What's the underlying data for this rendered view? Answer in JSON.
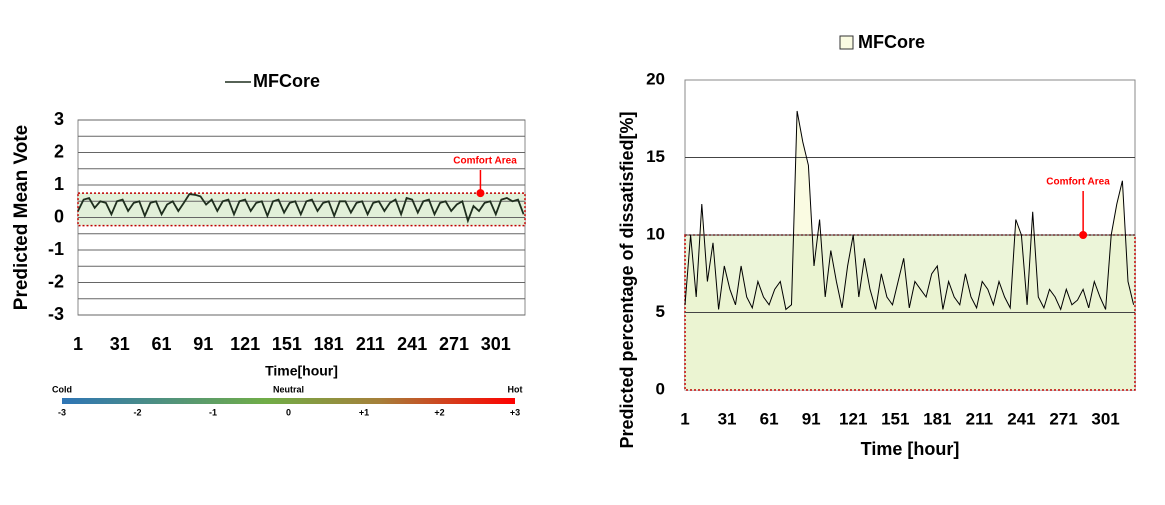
{
  "chart_data": [
    {
      "type": "line",
      "ylabel": "Predicted Mean Vote",
      "xlabel": "Time[hour]",
      "series": [
        {
          "name": "MFCore",
          "color": "#1e2e1e",
          "values": [
            0.2,
            0.55,
            0.6,
            0.3,
            0.5,
            0.45,
            0.1,
            0.5,
            0.55,
            0.2,
            0.45,
            0.5,
            0.05,
            0.45,
            0.5,
            0.1,
            0.4,
            0.5,
            0.2,
            0.45,
            0.72,
            0.7,
            0.65,
            0.4,
            0.55,
            0.2,
            0.5,
            0.55,
            0.1,
            0.5,
            0.55,
            0.2,
            0.45,
            0.5,
            0.05,
            0.5,
            0.55,
            0.15,
            0.45,
            0.5,
            0.1,
            0.5,
            0.55,
            0.2,
            0.45,
            0.5,
            0.05,
            0.5,
            0.5,
            0.15,
            0.45,
            0.5,
            0.1,
            0.45,
            0.5,
            0.2,
            0.45,
            0.55,
            0.1,
            0.6,
            0.55,
            0.15,
            0.5,
            0.55,
            0.1,
            0.45,
            0.5,
            0.2,
            0.4,
            0.5,
            -0.1,
            0.35,
            0.2,
            0.45,
            0.5,
            0.1,
            0.55,
            0.6,
            0.5,
            0.55,
            0.1
          ]
        }
      ],
      "x": [
        1,
        5,
        9,
        13,
        17,
        21,
        25,
        29,
        33,
        37,
        41,
        45,
        49,
        53,
        57,
        61,
        65,
        69,
        73,
        77,
        81,
        85,
        89,
        93,
        97,
        101,
        105,
        109,
        113,
        117,
        121,
        125,
        129,
        133,
        137,
        141,
        145,
        149,
        153,
        157,
        161,
        165,
        169,
        173,
        177,
        181,
        185,
        189,
        193,
        197,
        201,
        205,
        209,
        213,
        217,
        221,
        225,
        229,
        233,
        237,
        241,
        245,
        249,
        253,
        257,
        261,
        265,
        269,
        273,
        277,
        281,
        285,
        289,
        293,
        297,
        301,
        305,
        309,
        313,
        317,
        321
      ],
      "xlim": [
        1,
        322
      ],
      "xticks": [
        1,
        31,
        61,
        91,
        121,
        151,
        181,
        211,
        241,
        271,
        301
      ],
      "ylim": [
        -3,
        3
      ],
      "yticks": [
        -3,
        -2,
        -1,
        0,
        1,
        2,
        3
      ],
      "ygrid": [
        -3,
        -2.5,
        -2,
        -1.5,
        -1,
        -0.5,
        0,
        0.5,
        1,
        1.5,
        2,
        2.5,
        3
      ],
      "comfort_range": [
        -0.25,
        0.75
      ],
      "comfort_color": "#e2f0d9",
      "annotation": {
        "text": "Comfort Area",
        "x": 290,
        "y": 0.75
      },
      "colorbar": {
        "labels": [
          "Cold",
          "Neutral",
          "Hot"
        ],
        "range": [
          -3,
          3
        ],
        "ticks": [
          -3,
          -2,
          -1,
          0,
          {
            "value": 1,
            "label": "+1"
          },
          {
            "value": 2,
            "label": "+2"
          },
          {
            "value": 3,
            "label": "+3"
          }
        ]
      }
    },
    {
      "type": "area",
      "ylabel": "Predicted percentage of dissatisfied[%]",
      "xlabel": "Time [hour]",
      "series": [
        {
          "name": "MFCore",
          "color": "#000000",
          "fill": "#fafbe2",
          "values": [
            5.5,
            10,
            6,
            12,
            7,
            9.5,
            5.2,
            8,
            6.5,
            5.5,
            8,
            6,
            5.3,
            7,
            6,
            5.5,
            6.5,
            7,
            5.2,
            5.5,
            18,
            16,
            14.5,
            8,
            11,
            6,
            9,
            7,
            5.3,
            8,
            10,
            6,
            8.5,
            6.5,
            5.2,
            7.5,
            6,
            5.5,
            7,
            8.5,
            5.3,
            7,
            6.5,
            6,
            7.5,
            8,
            5.2,
            7,
            6,
            5.5,
            7.5,
            6,
            5.3,
            7,
            6.5,
            5.5,
            7,
            6,
            5.3,
            11,
            10,
            5.5,
            11.5,
            6,
            5.3,
            6.5,
            6,
            5.2,
            6.5,
            5.5,
            5.8,
            6.5,
            5.3,
            7,
            6,
            5.2,
            10,
            12,
            13.5,
            7,
            5.5
          ]
        }
      ],
      "x": [
        1,
        5,
        9,
        13,
        17,
        21,
        25,
        29,
        33,
        37,
        41,
        45,
        49,
        53,
        57,
        61,
        65,
        69,
        73,
        77,
        81,
        85,
        89,
        93,
        97,
        101,
        105,
        109,
        113,
        117,
        121,
        125,
        129,
        133,
        137,
        141,
        145,
        149,
        153,
        157,
        161,
        165,
        169,
        173,
        177,
        181,
        185,
        189,
        193,
        197,
        201,
        205,
        209,
        213,
        217,
        221,
        225,
        229,
        233,
        237,
        241,
        245,
        249,
        253,
        257,
        261,
        265,
        269,
        273,
        277,
        281,
        285,
        289,
        293,
        297,
        301,
        305,
        309,
        313,
        317,
        321
      ],
      "xlim": [
        1,
        322
      ],
      "xticks": [
        1,
        31,
        61,
        91,
        121,
        151,
        181,
        211,
        241,
        271,
        301
      ],
      "ylim": [
        0,
        20
      ],
      "yticks": [
        0,
        5,
        10,
        15,
        20
      ],
      "ygrid": [
        5,
        10,
        15
      ],
      "comfort_range": [
        0,
        10
      ],
      "comfort_color": "#e6f2cc",
      "annotation": {
        "text": "Comfort Area",
        "x": 285,
        "y": 10
      }
    }
  ]
}
